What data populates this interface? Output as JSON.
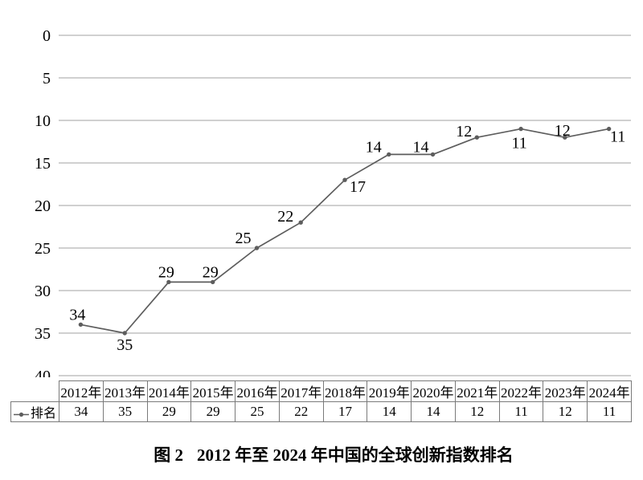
{
  "chart_data": {
    "type": "line",
    "title": "",
    "xlabel": "",
    "ylabel": "",
    "categories": [
      "2012年",
      "2013年",
      "2014年",
      "2015年",
      "2016年",
      "2017年",
      "2018年",
      "2019年",
      "2020年",
      "2021年",
      "2022年",
      "2023年",
      "2024年"
    ],
    "series": [
      {
        "name": "排名",
        "values": [
          34,
          35,
          29,
          29,
          25,
          22,
          17,
          14,
          14,
          12,
          11,
          12,
          11
        ]
      }
    ],
    "yticks": [
      0,
      5,
      10,
      15,
      20,
      25,
      30,
      35,
      40
    ],
    "ylim": [
      0,
      40
    ],
    "y_axis_reversed": true,
    "grid": "horizontal-only",
    "data_labels": true,
    "legend_position": "data-table-row-header",
    "colors": {
      "line": "#5d5d5d",
      "marker": "#5d5d5d",
      "gridline": "#b5b5b5",
      "table_border": "#7a7a7a",
      "label_text": "#000000"
    }
  },
  "caption": {
    "label": "图 2",
    "text": "2012 年至 2024 年中国的全球创新指数排名"
  }
}
